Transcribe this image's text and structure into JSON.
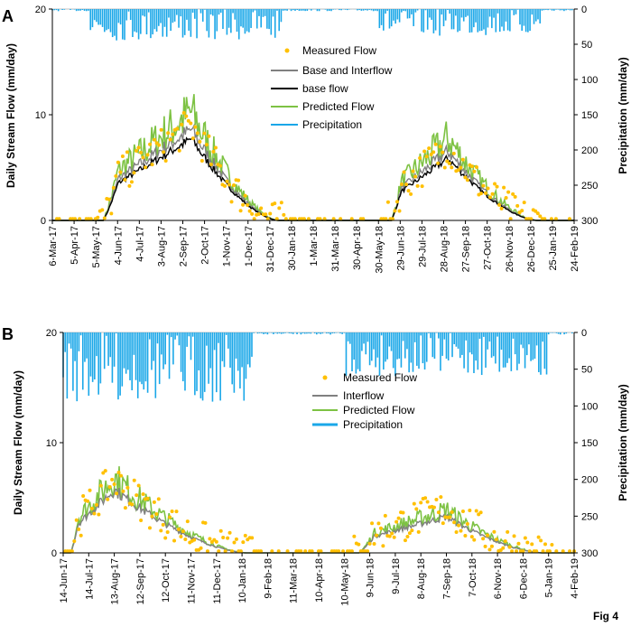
{
  "figure_label": "Fig 4",
  "chart_data": [
    {
      "panel": "A",
      "type": "line",
      "ylabel_left": "Daily Stream Flow (mm/day)",
      "ylabel_right": "Precipitation (mm/day)",
      "ylim_left": [
        0,
        20
      ],
      "ylim_right": [
        300,
        0
      ],
      "left_ticks": [
        0,
        10,
        20
      ],
      "right_ticks": [
        0,
        50,
        100,
        150,
        200,
        250,
        300
      ],
      "x_tick_labels": [
        "6-Mar-17",
        "5-Apr-17",
        "5-May-17",
        "4-Jun-17",
        "4-Jul-17",
        "3-Aug-17",
        "2-Sep-17",
        "2-Oct-17",
        "1-Nov-17",
        "1-Dec-17",
        "31-Dec-17",
        "30-Jan-18",
        "1-Mar-18",
        "31-Mar-18",
        "30-Apr-18",
        "30-May-18",
        "29-Jun-18",
        "29-Jul-18",
        "28-Aug-18",
        "27-Sep-18",
        "27-Oct-18",
        "26-Nov-18",
        "26-Dec-18",
        "25-Jan-19",
        "24-Feb-19"
      ],
      "legend": [
        "Measured Flow",
        "Base and Interflow",
        "base flow",
        "Predicted Flow",
        "Precipitation"
      ],
      "colors": {
        "measured": "#FFC000",
        "interflow": "#808080",
        "baseflow": "#000000",
        "predicted": "#7DC243",
        "precip": "#1AA7E8"
      },
      "events": [
        {
          "start": 2.35,
          "peak": 6.4,
          "end": 10.4,
          "height": 10.5,
          "measured_height": 9.0,
          "precip_max": 45
        },
        {
          "start": 15.6,
          "peak": 18.2,
          "end": 22.3,
          "height": 8.0,
          "measured_height": 7.0,
          "precip_max": 38
        }
      ]
    },
    {
      "panel": "B",
      "type": "line",
      "ylabel_left": "Daily Stream Flow (mm/day)",
      "ylabel_right": "Precipitation (mm/day)",
      "ylim_left": [
        0,
        20
      ],
      "ylim_right": [
        300,
        0
      ],
      "left_ticks": [
        0,
        10,
        20
      ],
      "right_ticks": [
        0,
        50,
        100,
        150,
        200,
        250,
        300
      ],
      "x_tick_labels": [
        "14-Jun-17",
        "14-Jul-17",
        "13-Aug-17",
        "12-Sep-17",
        "12-Oct-17",
        "11-Nov-17",
        "11-Dec-17",
        "10-Jan-18",
        "9-Feb-18",
        "11-Mar-18",
        "10-Apr-18",
        "10-May-18",
        "9-Jun-18",
        "9-Jul-18",
        "8-Aug-18",
        "7-Sep-18",
        "7-Oct-18",
        "6-Nov-18",
        "6-Dec-18",
        "5-Jan-19",
        "4-Feb-19"
      ],
      "legend": [
        "Measured Flow",
        "Interflow",
        "Predicted Flow",
        "Precipitation"
      ],
      "colors": {
        "measured": "#FFC000",
        "interflow": "#808080",
        "predicted": "#7DC243",
        "precip": "#1AA7E8"
      },
      "events": [
        {
          "start": 0.3,
          "peak": 2.0,
          "end": 7.2,
          "height": 7.0,
          "measured_height": 6.6,
          "precip_max": 95
        },
        {
          "start": 11.6,
          "peak": 15.0,
          "end": 18.8,
          "height": 4.0,
          "measured_height": 4.0,
          "precip_max": 60
        }
      ]
    }
  ]
}
